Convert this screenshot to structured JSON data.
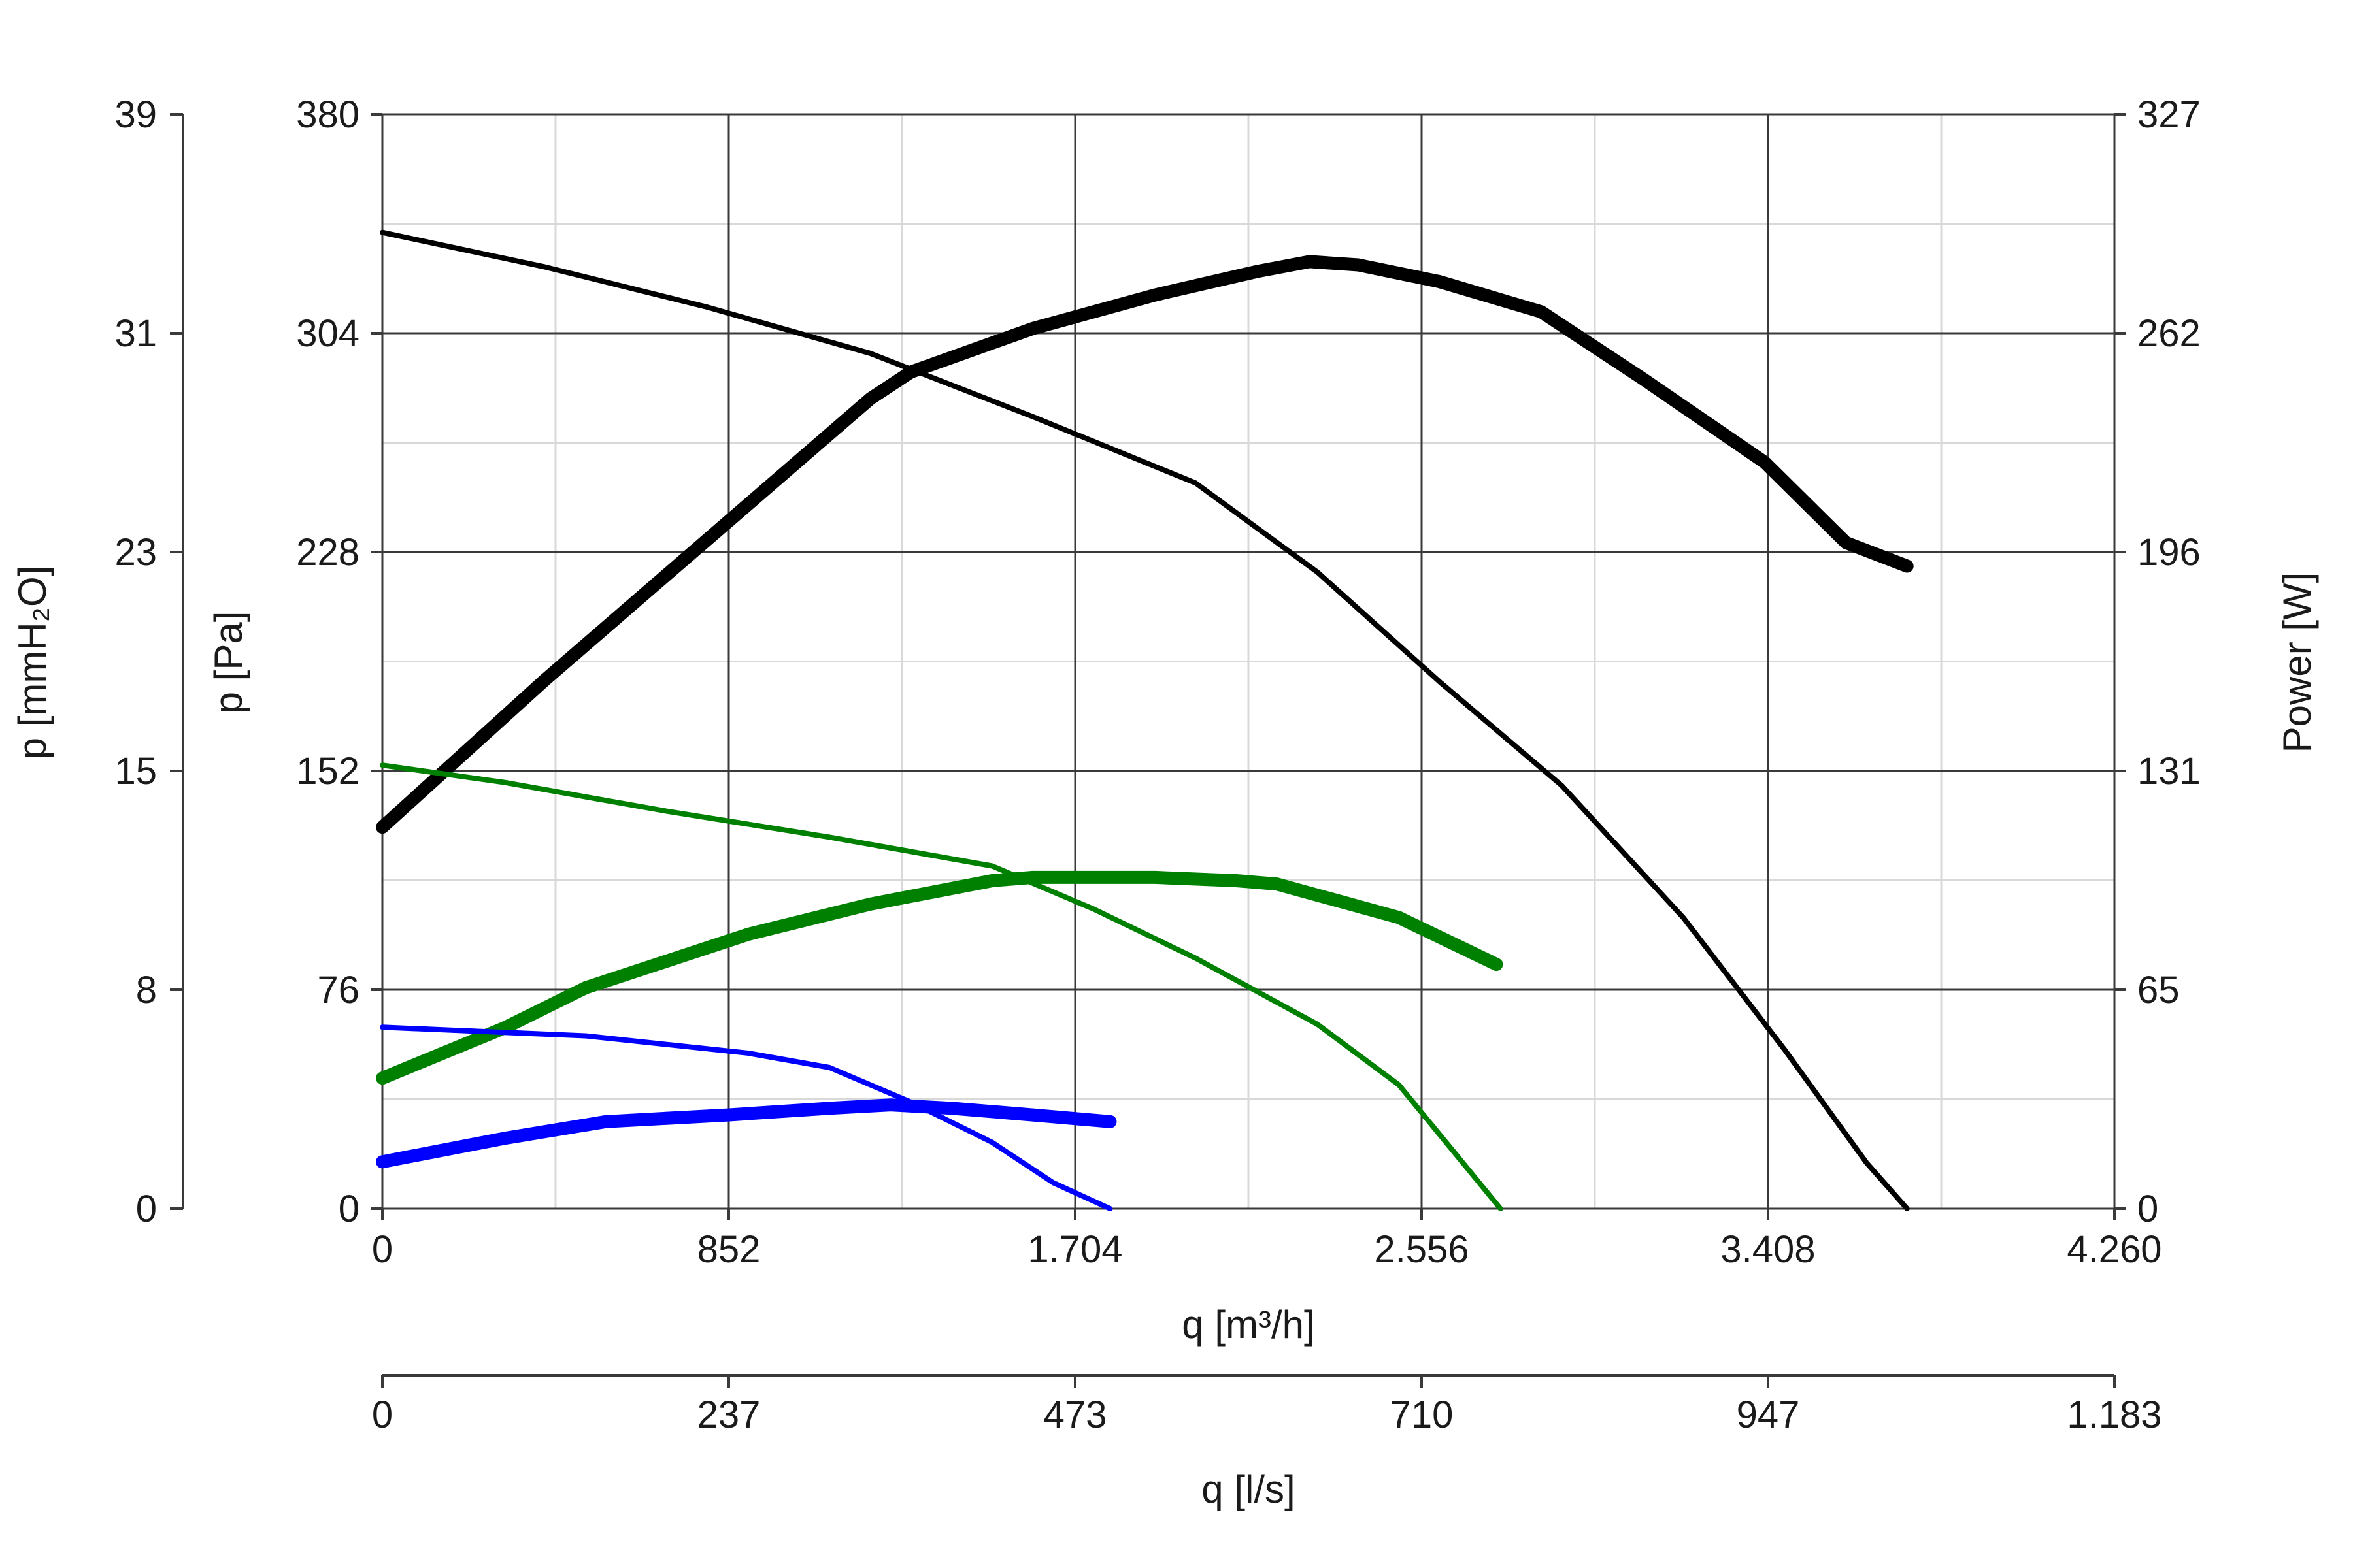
{
  "chart_data": {
    "type": "line",
    "x_axis": {
      "label": "q [m³/h]",
      "range": [
        0,
        4260
      ],
      "ticks": [
        "0",
        "852",
        "1.704",
        "2.556",
        "3.408",
        "4.260"
      ]
    },
    "x_axis_secondary": {
      "label": "q [l/s]",
      "range": [
        0,
        1183
      ],
      "ticks": [
        "0",
        "237",
        "473",
        "710",
        "947",
        "1.183"
      ]
    },
    "y_axis": {
      "label": "p [Pa]",
      "range": [
        0,
        380
      ],
      "ticks": [
        "0",
        "76",
        "152",
        "228",
        "304",
        "380"
      ]
    },
    "y_axis_outer": {
      "label": "p [mmH₂O]",
      "range": [
        0,
        39
      ],
      "ticks": [
        "0",
        "8",
        "15",
        "23",
        "31",
        "39"
      ]
    },
    "y_axis_right": {
      "label": "Power [W]",
      "range": [
        0,
        327
      ],
      "ticks": [
        "0",
        "65",
        "131",
        "196",
        "262",
        "327"
      ]
    },
    "grid": true,
    "series": [
      {
        "color": "#000000",
        "kind": "pressure",
        "points": [
          [
            0,
            339
          ],
          [
            400,
            327
          ],
          [
            800,
            313
          ],
          [
            1200,
            297
          ],
          [
            1600,
            275
          ],
          [
            2000,
            252
          ],
          [
            2300,
            221
          ],
          [
            2600,
            183
          ],
          [
            2900,
            147
          ],
          [
            3200,
            101
          ],
          [
            3450,
            55
          ],
          [
            3650,
            16
          ],
          [
            3750,
            0
          ]
        ]
      },
      {
        "color": "#000000",
        "kind": "power",
        "points": [
          [
            0,
            114
          ],
          [
            400,
            158
          ],
          [
            800,
            200
          ],
          [
            1200,
            242
          ],
          [
            1300,
            250
          ],
          [
            1600,
            263
          ],
          [
            1900,
            273
          ],
          [
            2150,
            280
          ],
          [
            2280,
            283
          ],
          [
            2400,
            282
          ],
          [
            2600,
            277
          ],
          [
            2850,
            268
          ],
          [
            3100,
            248
          ],
          [
            3400,
            223
          ],
          [
            3600,
            199
          ],
          [
            3750,
            192
          ]
        ]
      },
      {
        "color": "#008000",
        "kind": "pressure",
        "points": [
          [
            0,
            154
          ],
          [
            300,
            148
          ],
          [
            700,
            138
          ],
          [
            1100,
            129
          ],
          [
            1500,
            119
          ],
          [
            1750,
            104
          ],
          [
            2000,
            87
          ],
          [
            2300,
            64
          ],
          [
            2500,
            43
          ],
          [
            2750,
            0
          ]
        ]
      },
      {
        "color": "#008000",
        "kind": "power",
        "points": [
          [
            0,
            39
          ],
          [
            300,
            54
          ],
          [
            500,
            66
          ],
          [
            900,
            82
          ],
          [
            1200,
            91
          ],
          [
            1500,
            98
          ],
          [
            1600,
            99
          ],
          [
            1900,
            99
          ],
          [
            2100,
            98
          ],
          [
            2200,
            97
          ],
          [
            2500,
            87
          ],
          [
            2740,
            73
          ]
        ]
      },
      {
        "color": "#0000ff",
        "kind": "pressure",
        "points": [
          [
            0,
            63
          ],
          [
            500,
            60
          ],
          [
            900,
            54
          ],
          [
            1100,
            49
          ],
          [
            1300,
            37
          ],
          [
            1500,
            23
          ],
          [
            1650,
            9
          ],
          [
            1790,
            0
          ]
        ]
      },
      {
        "color": "#0000ff",
        "kind": "power",
        "points": [
          [
            0,
            14
          ],
          [
            300,
            21
          ],
          [
            550,
            26
          ],
          [
            850,
            28
          ],
          [
            1100,
            30
          ],
          [
            1250,
            31
          ],
          [
            1400,
            30
          ],
          [
            1600,
            28
          ],
          [
            1790,
            26
          ]
        ]
      }
    ]
  }
}
